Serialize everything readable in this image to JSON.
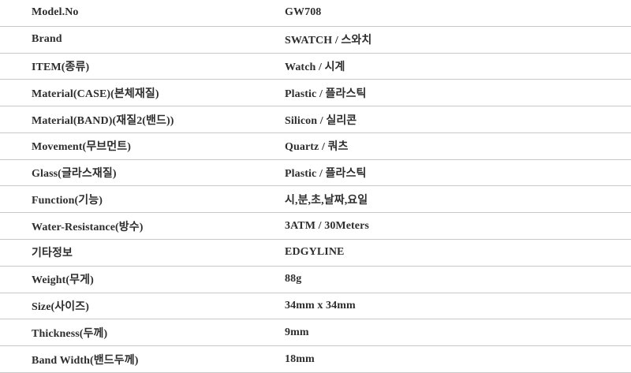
{
  "spec_table": {
    "border_color": "#c9c9c9",
    "text_color": "#2e2e2e",
    "background_color": "#ffffff",
    "rows": [
      {
        "label": "Model.No",
        "value": "GW708"
      },
      {
        "label": "Brand",
        "value": "SWATCH / 스와치"
      },
      {
        "label": "ITEM(종류)",
        "value": "Watch / 시계"
      },
      {
        "label": "Material(CASE)(본체재질)",
        "value": "Plastic / 플라스틱"
      },
      {
        "label": "Material(BAND)(재질2(밴드))",
        "value": "Silicon / 실리콘"
      },
      {
        "label": "Movement(무브먼트)",
        "value": "Quartz / 쿼츠"
      },
      {
        "label": "Glass(글라스재질)",
        "value": "Plastic / 플라스틱"
      },
      {
        "label": "Function(기능)",
        "value": "시,분,초,날짜,요일"
      },
      {
        "label": "Water-Resistance(방수)",
        "value": "3ATM / 30Meters"
      },
      {
        "label": "기타정보",
        "value": "EDGYLINE"
      },
      {
        "label": "Weight(무게)",
        "value": "88g"
      },
      {
        "label": "Size(사이즈)",
        "value": "34mm x 34mm"
      },
      {
        "label": "Thickness(두께)",
        "value": "9mm"
      },
      {
        "label": "Band Width(밴드두께)",
        "value": "18mm"
      }
    ]
  }
}
